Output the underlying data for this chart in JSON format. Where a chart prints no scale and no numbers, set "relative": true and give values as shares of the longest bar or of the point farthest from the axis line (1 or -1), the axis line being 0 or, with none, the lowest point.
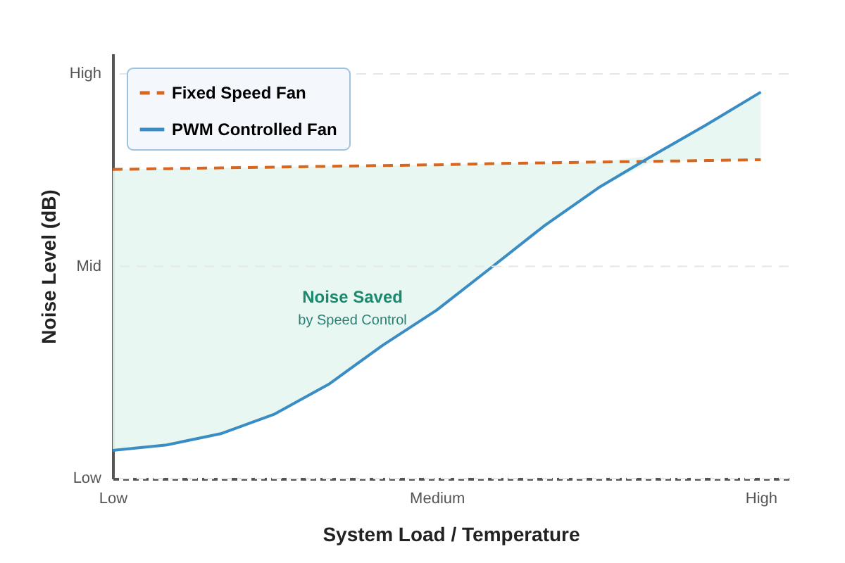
{
  "chart_data": {
    "type": "line",
    "xlabel": "System Load / Temperature",
    "ylabel": "Noise Level (dB)",
    "relative": true,
    "categories": [
      "Low",
      null,
      null,
      null,
      null,
      null,
      "Medium",
      null,
      null,
      null,
      null,
      null,
      "High"
    ],
    "legend": "top left",
    "ref_lines": [
      {
        "axis": "y",
        "value": 0,
        "label": "Low",
        "color": "#e6e6e6",
        "line_style": "dashed"
      },
      {
        "axis": "y",
        "value": 0.549,
        "label": "Mid",
        "color": "#e6e6e6",
        "line_style": "dashed"
      },
      {
        "axis": "y",
        "value": 1.047,
        "label": "High",
        "color": "#e6e6e6",
        "line_style": "dashed"
      }
    ],
    "series": [
      {
        "name": "Fixed Speed Fan",
        "color": "#d9661f",
        "line_style": "dashed",
        "values": [
          0.8,
          0.802,
          0.804,
          0.806,
          0.808,
          0.81,
          0.812,
          0.815,
          0.817,
          0.819,
          0.821,
          0.823,
          0.825
        ]
      },
      {
        "name": "PWM Controlled Fan",
        "color": "#3a8cc4",
        "line_style": "solid",
        "values": [
          0.073,
          0.087,
          0.116,
          0.167,
          0.244,
          0.345,
          0.436,
          0.545,
          0.655,
          0.753,
          0.836,
          0.916,
          1.0
        ],
        "lower": [
          0.073,
          0.087,
          0.116,
          0.167,
          0.244,
          0.345,
          0.436,
          0.545,
          0.655,
          0.753,
          0.821,
          0.823,
          0.825
        ],
        "upper": [
          0.8,
          0.802,
          0.804,
          0.806,
          0.808,
          0.81,
          0.812,
          0.815,
          0.817,
          0.819,
          0.836,
          0.916,
          1.0
        ]
      }
    ],
    "annotations": [
      "Noise Saved",
      "by Speed Control"
    ]
  }
}
